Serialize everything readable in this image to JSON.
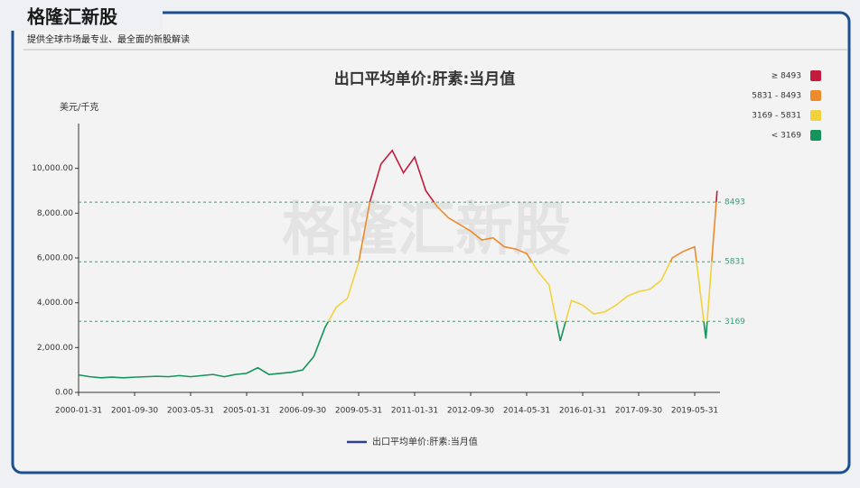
{
  "header": {
    "title": "格隆汇新股",
    "subtitle": "提供全球市场最专业、最全面的新股解读"
  },
  "chart_data": {
    "type": "line",
    "title": "出口平均单价:肝素:当月值",
    "y_label": "美元/千克",
    "categories": [
      "2000-01-31",
      null,
      null,
      null,
      null,
      "2001-09-30",
      null,
      null,
      null,
      null,
      "2003-05-31",
      null,
      null,
      null,
      null,
      "2005-01-31",
      null,
      null,
      null,
      null,
      "2006-09-30",
      null,
      null,
      null,
      null,
      "2009-05-31",
      null,
      null,
      null,
      null,
      "2011-01-31",
      null,
      null,
      null,
      null,
      "2012-09-30",
      null,
      null,
      null,
      null,
      "2014-05-31",
      null,
      null,
      null,
      null,
      "2016-01-31",
      null,
      null,
      null,
      null,
      "2017-09-30",
      null,
      null,
      null,
      null,
      "2019-05-31",
      null,
      null
    ],
    "series": [
      {
        "name": "出口平均单价:肝素:当月值",
        "color": "#2c3e8f",
        "values": [
          780,
          700,
          650,
          680,
          650,
          680,
          700,
          720,
          700,
          750,
          700,
          750,
          800,
          700,
          800,
          850,
          1100,
          800,
          850,
          900,
          1000,
          1600,
          2900,
          3800,
          4200,
          5800,
          8500,
          10200,
          10800,
          9800,
          10500,
          9000,
          8300,
          7800,
          7500,
          7200,
          6800,
          6900,
          6500,
          6400,
          6200,
          5400,
          4800,
          2300,
          4100,
          3900,
          3500,
          3600,
          3900,
          4300,
          4500,
          4600,
          5000,
          6000,
          6300,
          6500,
          2400,
          9000
        ]
      }
    ],
    "ylim": [
      0,
      12000
    ],
    "yticks": [
      {
        "value": 0,
        "label": "0.00"
      },
      {
        "value": 2000,
        "label": "2,000.00"
      },
      {
        "value": 4000,
        "label": "4,000.00"
      },
      {
        "value": 6000,
        "label": "6,000.00"
      },
      {
        "value": 8000,
        "label": "8,000.00"
      },
      {
        "value": 10000,
        "label": "10,000.00"
      }
    ],
    "thresholds": [
      8493,
      5831,
      3169
    ],
    "threshold_color": "#3f9a78",
    "pieces": [
      {
        "label": "≥ 8493",
        "color": "#c41a3b"
      },
      {
        "label": "5831 - 8493",
        "color": "#ec8a2c"
      },
      {
        "label": "3169 - 5831",
        "color": "#f1d23c"
      },
      {
        "label": "< 3169",
        "color": "#14935a"
      }
    ]
  }
}
